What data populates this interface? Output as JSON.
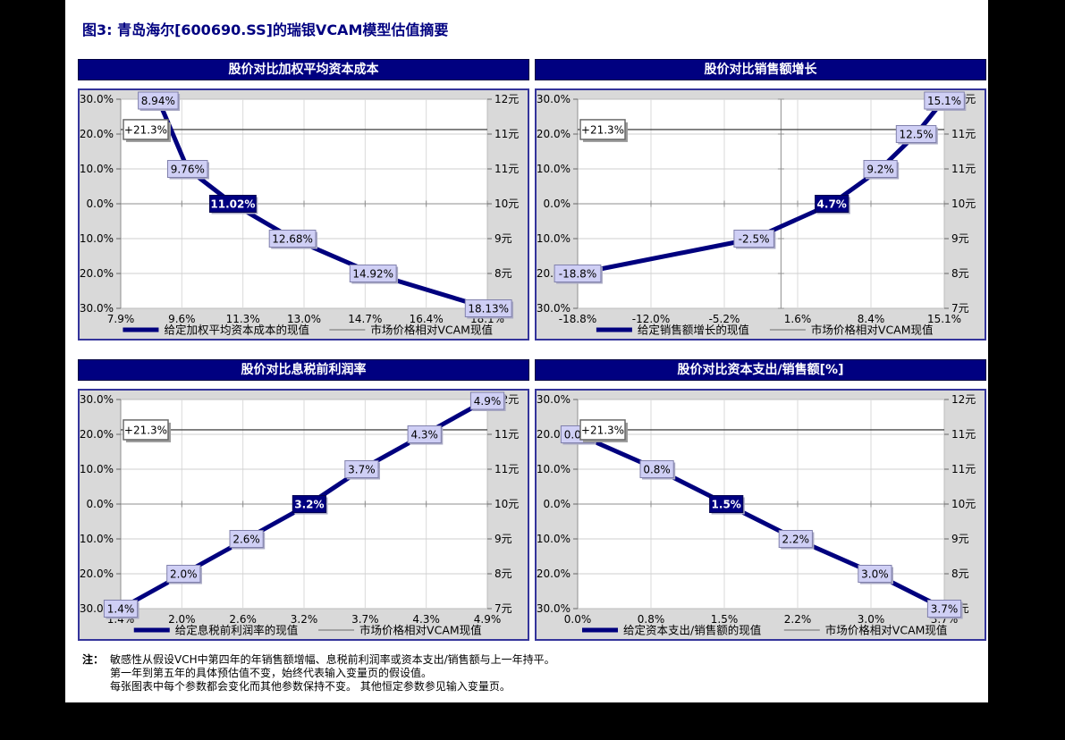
{
  "page": {
    "title": "图3: 青岛海尔[600690.SS]的瑞银VCAM模型估值摘要",
    "footnote": {
      "label": "注：",
      "lines": [
        "敏感性从假设VCH中第四年的年销售额增幅、息税前利润率或资本支出/销售额与上一年持平。",
        "第一年到第五年的具体预估值不变，始终代表输入变量页的假设值。",
        "每张图表中每个参数都会变化而其他参数保持不变。 其他恒定参数参见输入变量页。"
      ]
    }
  },
  "colors": {
    "navy": "#000080",
    "data_line": "#00007e",
    "header_bg": "#000080",
    "label_fill": "#cfcff5",
    "label_border": "#8080ac",
    "current_label_fill": "#000080",
    "chart_margin_bg": "#d9d9d9",
    "plot_bg": "#ffffff",
    "gridline": "#cfcfcf",
    "axis_line": "#8f8f8f",
    "reference_line": "#4d4d4d",
    "canvas_bg": "#000000",
    "page_bg": "#ffffff"
  },
  "chart_data": [
    {
      "type": "line",
      "title": "股价对比加权平均资本成本",
      "x_ticks": [
        "7.9%",
        "9.6%",
        "11.3%",
        "13.0%",
        "14.7%",
        "16.4%",
        "18.1%"
      ],
      "x_min": 7.9,
      "x_max": 18.1,
      "y_left_ticks": [
        "+30.0%",
        "+20.0%",
        "+10.0%",
        "0.0%",
        "-10.0%",
        "-20.0%",
        "-30.0%"
      ],
      "y_right_ticks": [
        "12元",
        "11元",
        "11元",
        "10元",
        "9元",
        "8元",
        "7元"
      ],
      "y_min": -30,
      "y_max": 30,
      "points": [
        {
          "x": 8.94,
          "y": 30,
          "label": "8.94%"
        },
        {
          "x": 9.76,
          "y": 10,
          "label": "9.76%"
        },
        {
          "x": 11.02,
          "y": 0,
          "label": "11.02%",
          "current": true
        },
        {
          "x": 12.68,
          "y": -10,
          "label": "12.68%"
        },
        {
          "x": 14.92,
          "y": -20,
          "label": "14.92%"
        },
        {
          "x": 18.13,
          "y": -30,
          "label": "18.13%"
        }
      ],
      "reference_line": {
        "value": 21.3,
        "label": "+21.3%"
      },
      "x_axis_cross": null,
      "legend": [
        {
          "label": "给定加权平均资本成本的现值",
          "style": "thick-navy"
        },
        {
          "label": "市场价格相对VCAM现值",
          "style": "thin-gray"
        }
      ]
    },
    {
      "type": "line",
      "title": "股价对比销售额增长",
      "x_ticks": [
        "-18.8%",
        "-12.0%",
        "-5.2%",
        "1.6%",
        "8.4%",
        "15.1%"
      ],
      "x_min": -18.8,
      "x_max": 15.1,
      "y_left_ticks": [
        "+30.0%",
        "+20.0%",
        "+10.0%",
        "0.0%",
        "-10.0%",
        "-20.0%",
        "-30.0%"
      ],
      "y_right_ticks": [
        "12元",
        "11元",
        "11元",
        "10元",
        "9元",
        "8元",
        "7元"
      ],
      "y_min": -30,
      "y_max": 30,
      "points": [
        {
          "x": -18.8,
          "y": -20,
          "label": "-18.8%"
        },
        {
          "x": -2.5,
          "y": -10,
          "label": "-2.5%"
        },
        {
          "x": 4.7,
          "y": 0,
          "label": "4.7%",
          "current": true
        },
        {
          "x": 9.2,
          "y": 10,
          "label": "9.2%"
        },
        {
          "x": 12.5,
          "y": 20,
          "label": "12.5%"
        },
        {
          "x": 15.1,
          "y": 30,
          "label": "15.1%"
        }
      ],
      "reference_line": {
        "value": 21.3,
        "label": "+21.3%"
      },
      "x_axis_cross": 0,
      "legend": [
        {
          "label": "给定销售额增长的现值",
          "style": "thick-navy"
        },
        {
          "label": "市场价格相对VCAM现值",
          "style": "thin-gray"
        }
      ]
    },
    {
      "type": "line",
      "title": "股价对比息税前利润率",
      "x_ticks": [
        "1.4%",
        "2.0%",
        "2.6%",
        "3.2%",
        "3.7%",
        "4.3%",
        "4.9%"
      ],
      "x_min": 1.4,
      "x_max": 4.9,
      "y_left_ticks": [
        "+30.0%",
        "+20.0%",
        "+10.0%",
        "0.0%",
        "-10.0%",
        "-20.0%",
        "-30.0%"
      ],
      "y_right_ticks": [
        "12元",
        "11元",
        "11元",
        "10元",
        "9元",
        "8元",
        "7元"
      ],
      "y_min": -30,
      "y_max": 30,
      "points": [
        {
          "x": 1.4,
          "y": -30,
          "label": "1.4%"
        },
        {
          "x": 2.0,
          "y": -20,
          "label": "2.0%"
        },
        {
          "x": 2.6,
          "y": -10,
          "label": "2.6%"
        },
        {
          "x": 3.2,
          "y": 0,
          "label": "3.2%",
          "current": true
        },
        {
          "x": 3.7,
          "y": 10,
          "label": "3.7%"
        },
        {
          "x": 4.3,
          "y": 20,
          "label": "4.3%"
        },
        {
          "x": 4.9,
          "y": 30,
          "label": "4.9%"
        }
      ],
      "reference_line": {
        "value": 21.3,
        "label": "+21.3%"
      },
      "x_axis_cross": null,
      "legend": [
        {
          "label": "给定息税前利润率的现值",
          "style": "thick-navy"
        },
        {
          "label": "市场价格相对VCAM现值",
          "style": "thin-gray"
        }
      ]
    },
    {
      "type": "line",
      "title": "股价对比资本支出/销售额[%]",
      "x_ticks": [
        "0.0%",
        "0.8%",
        "1.5%",
        "2.2%",
        "3.0%",
        "3.7%"
      ],
      "x_min": 0.0,
      "x_max": 3.7,
      "y_left_ticks": [
        "+30.0%",
        "+20.0%",
        "+10.0%",
        "0.0%",
        "-10.0%",
        "-20.0%",
        "-30.0%"
      ],
      "y_right_ticks": [
        "12元",
        "11元",
        "11元",
        "10元",
        "9元",
        "8元",
        "7元"
      ],
      "y_min": -30,
      "y_max": 30,
      "points": [
        {
          "x": 0.0,
          "y": 20,
          "label": "0.0%"
        },
        {
          "x": 0.8,
          "y": 10,
          "label": "0.8%"
        },
        {
          "x": 1.5,
          "y": 0,
          "label": "1.5%",
          "current": true
        },
        {
          "x": 2.2,
          "y": -10,
          "label": "2.2%"
        },
        {
          "x": 3.0,
          "y": -20,
          "label": "3.0%"
        },
        {
          "x": 3.7,
          "y": -30,
          "label": "3.7%"
        }
      ],
      "reference_line": {
        "value": 21.3,
        "label": "+21.3%"
      },
      "x_axis_cross": null,
      "legend": [
        {
          "label": "给定资本支出/销售额的现值",
          "style": "thick-navy"
        },
        {
          "label": "市场价格相对VCAM现值",
          "style": "thin-gray"
        }
      ]
    }
  ]
}
